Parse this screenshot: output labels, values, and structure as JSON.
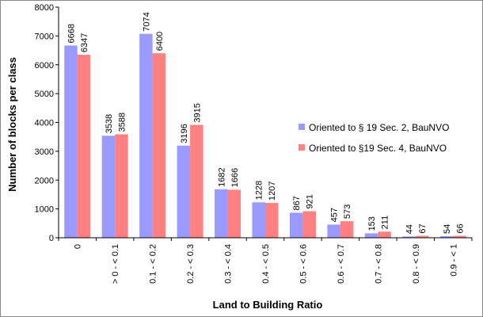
{
  "chart_data": {
    "type": "bar",
    "title": "",
    "xlabel": "Land to Building Ratio",
    "ylabel": "Number of blocks per class",
    "ylim": [
      0,
      8000
    ],
    "yticks": [
      0,
      1000,
      2000,
      3000,
      4000,
      5000,
      6000,
      7000,
      8000
    ],
    "grid": false,
    "legend_position": "right",
    "categories": [
      "0",
      "> 0 - < 0.1",
      "0.1 - < 0.2",
      "0.2 - < 0.3",
      "0.3 - < 0.4",
      "0.4 - < 0.5",
      "0.5 - < 0.6",
      "0.6 - < 0.7",
      "0.7 - < 0.8",
      "0.8 - < 0.9",
      "0.9 - < 1"
    ],
    "series": [
      {
        "name": "Oriented to § 19 Sec. 2, BauNVO",
        "color": "#9999ff",
        "values": [
          6668,
          3538,
          7074,
          3196,
          1682,
          1228,
          867,
          457,
          153,
          44,
          54
        ]
      },
      {
        "name": "Oriented to §19 Sec. 4, BauNVO",
        "color": "#ff8080",
        "values": [
          6347,
          3588,
          6400,
          3915,
          1666,
          1207,
          921,
          573,
          211,
          67,
          66
        ]
      }
    ]
  }
}
